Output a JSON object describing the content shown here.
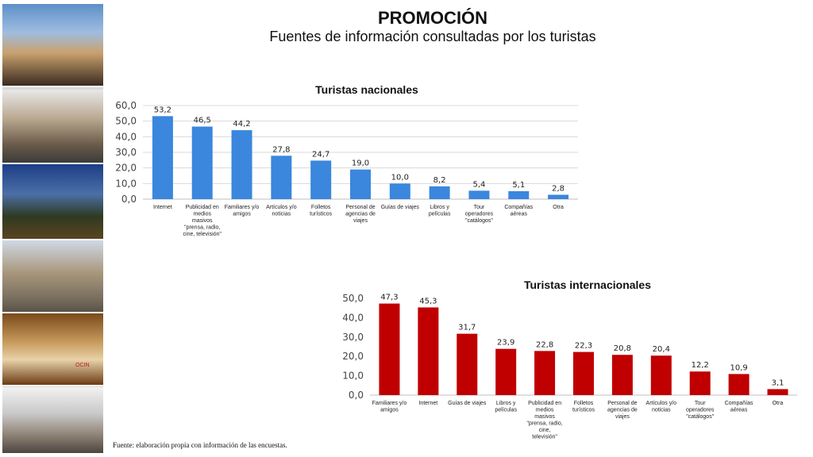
{
  "header": {
    "title": "PROMOCIÓN",
    "subtitle": "Fuentes de información consultadas por los turistas"
  },
  "photos": [
    {
      "name": "hotel-pool-couple-photo"
    },
    {
      "name": "street-crowd-photo"
    },
    {
      "name": "night-terrace-photo"
    },
    {
      "name": "church-plaza-photo"
    },
    {
      "name": "hotel-room-photo"
    },
    {
      "name": "mall-crowd-photo"
    }
  ],
  "photo_brand_text": "OCIN",
  "chart_data": [
    {
      "type": "bar",
      "title": "Turistas nacionales",
      "color": "#3a87dd",
      "categories": [
        "Internet",
        "Publicidad en\nmedios\nmasivos\n\"prensa, radio,\ncine, televisión\"",
        "Familiares y/o\namigos",
        "Artículos y/o\nnoticias",
        "Folletos\nturísticos",
        "Personal de\nagencias de\nviajes",
        "Guías de viajes",
        "Libros y\npelículas",
        "Tour\noperadores\n\"catálogos\"",
        "Compañías\naéreas",
        "Otra"
      ],
      "values": [
        53.2,
        46.5,
        44.2,
        27.8,
        24.7,
        19.0,
        10.0,
        8.2,
        5.4,
        5.1,
        2.8
      ],
      "value_labels": [
        "53,2",
        "46,5",
        "44,2",
        "27,8",
        "24,7",
        "19,0",
        "10,0",
        "8,2",
        "5,4",
        "5,1",
        "2,8"
      ],
      "ylim": [
        0,
        60
      ],
      "yticks": [
        "0,0",
        "10,0",
        "20,0",
        "30,0",
        "40,0",
        "50,0",
        "60,0"
      ],
      "grid": true
    },
    {
      "type": "bar",
      "title": "Turistas internacionales",
      "color": "#c00000",
      "categories": [
        "Familiares y/o\namigos",
        "Internet",
        "Guías de viajes",
        "Libros y\npelículas",
        "Publicidad en\nmedios\nmasivos\n\"prensa, radio,\ncine,\ntelevisión\"",
        "Folletos\nturísticos",
        "Personal de\nagencias de\nviajes",
        "Artículos y/o\nnoticias",
        "Tour\noperadores\n\"catálogos\"",
        "Compañías\naéreas",
        "Otra"
      ],
      "values": [
        47.3,
        45.3,
        31.7,
        23.9,
        22.8,
        22.3,
        20.8,
        20.4,
        12.2,
        10.9,
        3.1
      ],
      "value_labels": [
        "47,3",
        "45,3",
        "31,7",
        "23,9",
        "22,8",
        "22,3",
        "20,8",
        "20,4",
        "12,2",
        "10,9",
        "3,1"
      ],
      "ylim": [
        0,
        50
      ],
      "yticks": [
        "0,0",
        "10,0",
        "20,0",
        "30,0",
        "40,0",
        "50,0"
      ],
      "grid": false
    }
  ],
  "footnote": "Fuente: elaboración propia con información de las encuestas."
}
